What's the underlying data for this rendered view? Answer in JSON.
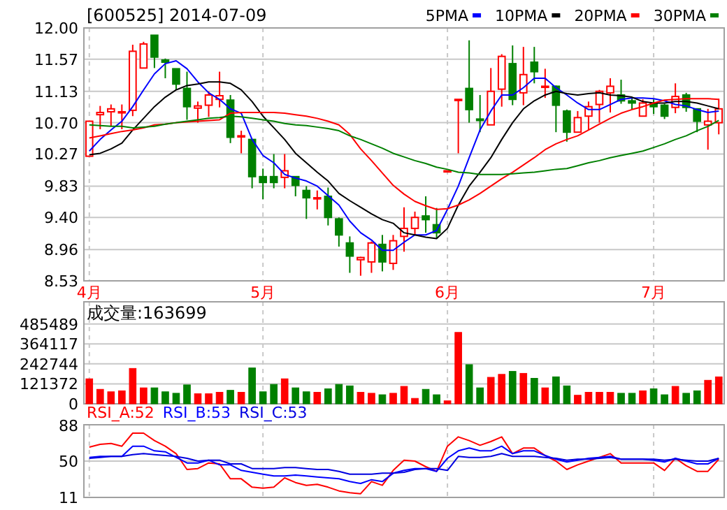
{
  "chart_data": [
    {
      "type": "candlestick",
      "title": "[600525] 2014-07-09",
      "categories": [
        "4月",
        null,
        null,
        null,
        null,
        null,
        null,
        null,
        null,
        null,
        null,
        null,
        null,
        null,
        null,
        null,
        "5月",
        null,
        null,
        null,
        null,
        null,
        null,
        null,
        null,
        null,
        null,
        null,
        null,
        null,
        null,
        null,
        null,
        "6月",
        null,
        null,
        null,
        null,
        null,
        null,
        null,
        null,
        null,
        null,
        null,
        null,
        null,
        null,
        null,
        null,
        null,
        null,
        "7月",
        null,
        null,
        null,
        null,
        null,
        null
      ],
      "ohlc": [
        [
          10.24,
          10.72,
          10.24,
          10.72
        ],
        [
          10.81,
          10.93,
          10.61,
          10.84
        ],
        [
          10.85,
          10.95,
          10.65,
          10.89
        ],
        [
          10.85,
          10.95,
          10.61,
          10.85
        ],
        [
          10.87,
          11.77,
          10.79,
          11.68
        ],
        [
          11.45,
          11.81,
          11.45,
          11.78
        ],
        [
          11.9,
          11.9,
          11.45,
          11.6
        ],
        [
          11.56,
          11.58,
          11.31,
          11.53
        ],
        [
          11.44,
          11.44,
          11.15,
          11.23
        ],
        [
          11.17,
          11.4,
          10.74,
          10.92
        ],
        [
          10.9,
          10.99,
          10.7,
          10.93
        ],
        [
          10.94,
          11.13,
          10.78,
          11.08
        ],
        [
          11.02,
          11.4,
          10.91,
          11.07
        ],
        [
          11.01,
          11.08,
          10.42,
          10.5
        ],
        [
          10.52,
          10.59,
          10.28,
          10.52
        ],
        [
          10.47,
          10.47,
          9.8,
          9.96
        ],
        [
          9.96,
          10.07,
          9.65,
          9.88
        ],
        [
          9.96,
          10.27,
          9.8,
          9.88
        ],
        [
          9.95,
          10.27,
          9.8,
          10.04
        ],
        [
          9.96,
          9.96,
          9.69,
          9.84
        ],
        [
          9.77,
          9.83,
          9.38,
          9.67
        ],
        [
          9.67,
          9.77,
          9.51,
          9.67
        ],
        [
          9.69,
          9.81,
          9.29,
          9.4
        ],
        [
          9.38,
          9.4,
          9.0,
          9.16
        ],
        [
          9.05,
          9.14,
          8.64,
          8.87
        ],
        [
          8.82,
          8.86,
          8.6,
          8.85
        ],
        [
          8.79,
          9.07,
          8.64,
          9.05
        ],
        [
          9.03,
          9.16,
          8.66,
          8.79
        ],
        [
          8.77,
          9.16,
          8.68,
          9.08
        ],
        [
          9.14,
          9.54,
          8.93,
          9.25
        ],
        [
          9.25,
          9.48,
          9.16,
          9.4
        ],
        [
          9.42,
          9.69,
          9.19,
          9.37
        ],
        [
          9.3,
          9.53,
          9.12,
          9.19
        ],
        [
          10.04,
          10.04,
          10.04,
          10.04
        ],
        [
          11.02,
          11.02,
          10.28,
          11.02
        ],
        [
          11.17,
          11.83,
          10.7,
          10.88
        ],
        [
          10.75,
          11.08,
          10.57,
          10.73
        ],
        [
          10.67,
          11.45,
          10.67,
          11.13
        ],
        [
          11.16,
          11.64,
          10.92,
          11.61
        ],
        [
          11.51,
          11.76,
          10.94,
          11.02
        ],
        [
          11.11,
          11.74,
          10.94,
          11.36
        ],
        [
          11.53,
          11.74,
          11.24,
          11.4
        ],
        [
          11.2,
          11.44,
          11.04,
          11.2
        ],
        [
          11.2,
          11.21,
          10.57,
          10.94
        ],
        [
          10.86,
          10.88,
          10.44,
          10.57
        ],
        [
          10.57,
          10.86,
          10.57,
          10.77
        ],
        [
          10.79,
          10.99,
          10.6,
          10.92
        ],
        [
          10.95,
          11.15,
          10.7,
          11.13
        ],
        [
          11.11,
          11.31,
          10.84,
          11.2
        ],
        [
          11.08,
          11.29,
          10.96,
          11.0
        ],
        [
          11.0,
          11.05,
          10.88,
          10.97
        ],
        [
          10.79,
          11.02,
          10.79,
          10.97
        ],
        [
          10.96,
          11.02,
          10.82,
          10.92
        ],
        [
          10.94,
          10.96,
          10.75,
          10.79
        ],
        [
          10.91,
          11.24,
          10.83,
          11.06
        ],
        [
          11.08,
          11.11,
          10.85,
          10.91
        ],
        [
          10.89,
          10.89,
          10.57,
          10.72
        ],
        [
          10.67,
          10.89,
          10.33,
          10.72
        ],
        [
          10.7,
          11.03,
          10.54,
          10.89
        ]
      ],
      "series": [
        {
          "name": "5PMA",
          "type": "line",
          "color": "#0000ff",
          "values": [
            10.31,
            10.47,
            10.6,
            10.72,
            10.92,
            11.15,
            11.37,
            11.51,
            11.55,
            11.44,
            11.26,
            11.11,
            11.02,
            10.89,
            10.83,
            10.47,
            10.25,
            10.15,
            9.99,
            9.94,
            9.9,
            9.83,
            9.7,
            9.57,
            9.35,
            9.19,
            9.09,
            8.95,
            8.95,
            9.06,
            9.16,
            9.16,
            9.22,
            9.51,
            9.83,
            10.22,
            10.6,
            10.86,
            11.08,
            11.08,
            11.18,
            11.31,
            11.31,
            11.18,
            11.08,
            10.97,
            10.88,
            10.88,
            10.95,
            11.02,
            11.04,
            11.04,
            11.03,
            11.0,
            10.95,
            10.93,
            10.88,
            10.84,
            10.86
          ]
        },
        {
          "name": "10PMA",
          "type": "line",
          "color": "#000000",
          "values": [
            10.26,
            10.28,
            10.34,
            10.42,
            10.6,
            10.76,
            10.92,
            11.05,
            11.15,
            11.21,
            11.23,
            11.26,
            11.26,
            11.24,
            11.15,
            10.99,
            10.79,
            10.63,
            10.47,
            10.28,
            10.15,
            10.02,
            9.9,
            9.73,
            9.63,
            9.54,
            9.45,
            9.37,
            9.32,
            9.19,
            9.16,
            9.13,
            9.11,
            9.25,
            9.57,
            9.83,
            10.02,
            10.22,
            10.47,
            10.7,
            10.89,
            11.0,
            11.08,
            11.13,
            11.1,
            11.08,
            11.1,
            11.11,
            11.08,
            11.07,
            11.05,
            10.99,
            10.97,
            10.97,
            10.99,
            10.99,
            10.97,
            10.93,
            10.89
          ]
        },
        {
          "name": "20PMA",
          "type": "line",
          "color": "#ff0000",
          "values": [
            10.49,
            10.52,
            10.55,
            10.58,
            10.6,
            10.63,
            10.67,
            10.68,
            10.7,
            10.71,
            10.72,
            10.73,
            10.74,
            10.83,
            10.84,
            10.84,
            10.84,
            10.84,
            10.83,
            10.81,
            10.79,
            10.76,
            10.72,
            10.67,
            10.54,
            10.34,
            10.18,
            10.01,
            9.84,
            9.72,
            9.62,
            9.56,
            9.51,
            9.52,
            9.57,
            9.64,
            9.73,
            9.83,
            9.93,
            10.02,
            10.12,
            10.22,
            10.33,
            10.41,
            10.47,
            10.52,
            10.6,
            10.68,
            10.76,
            10.83,
            10.88,
            10.92,
            10.97,
            11.01,
            11.02,
            11.03,
            11.03,
            11.03,
            11.02
          ]
        },
        {
          "name": "30PMA",
          "type": "line",
          "color": "#008000",
          "values": [
            10.67,
            10.66,
            10.65,
            10.65,
            10.63,
            10.64,
            10.65,
            10.68,
            10.7,
            10.72,
            10.74,
            10.76,
            10.77,
            10.79,
            10.78,
            10.76,
            10.74,
            10.72,
            10.69,
            10.67,
            10.66,
            10.64,
            10.62,
            10.59,
            10.52,
            10.47,
            10.41,
            10.35,
            10.28,
            10.23,
            10.18,
            10.14,
            10.09,
            10.06,
            10.02,
            10.01,
            9.99,
            9.99,
            9.99,
            10.0,
            10.01,
            10.02,
            10.04,
            10.06,
            10.07,
            10.11,
            10.15,
            10.18,
            10.22,
            10.25,
            10.28,
            10.31,
            10.36,
            10.41,
            10.47,
            10.52,
            10.59,
            10.65,
            10.73
          ]
        }
      ],
      "ylim": [
        8.53,
        12.0
      ],
      "yticks": [
        {
          "value": 12.0,
          "label": "12.00"
        },
        {
          "value": 11.57,
          "label": "11.57"
        },
        {
          "value": 11.13,
          "label": "11.13"
        },
        {
          "value": 10.7,
          "label": "10.70"
        },
        {
          "value": 10.27,
          "label": "10.27"
        },
        {
          "value": 9.83,
          "label": "9.83"
        },
        {
          "value": 9.4,
          "label": "9.40"
        },
        {
          "value": 8.96,
          "label": "8.96"
        },
        {
          "value": 8.53,
          "label": "8.53"
        }
      ],
      "grid": true,
      "legend": "top right"
    },
    {
      "type": "bar",
      "title": "成交量:163699",
      "categories": [
        null,
        null,
        null,
        null,
        null,
        null,
        null,
        null,
        null,
        null,
        null,
        null,
        null,
        null,
        null,
        null,
        null,
        null,
        null,
        null,
        null,
        null,
        null,
        null,
        null,
        null,
        null,
        null,
        null,
        null,
        null,
        null,
        null,
        null,
        null,
        null,
        null,
        null,
        null,
        null,
        null,
        null,
        null,
        null,
        null,
        null,
        null,
        null,
        null,
        null,
        null,
        null,
        null,
        null,
        null,
        null,
        null,
        null,
        null
      ],
      "values": [
        152000,
        88000,
        73000,
        79000,
        215000,
        97000,
        97000,
        73000,
        64000,
        115000,
        61000,
        61000,
        70000,
        82000,
        70000,
        218000,
        73000,
        118000,
        152000,
        97000,
        73000,
        70000,
        91000,
        118000,
        109000,
        70000,
        64000,
        55000,
        64000,
        106000,
        33000,
        88000,
        55000,
        18000,
        434000,
        238000,
        97000,
        161000,
        179000,
        197000,
        185000,
        155000,
        97000,
        164000,
        109000,
        52000,
        70000,
        70000,
        70000,
        64000,
        64000,
        79000,
        91000,
        55000,
        106000,
        64000,
        79000,
        143000,
        163699
      ],
      "colors": [
        "#ff0000",
        "#ff0000",
        "#ff0000",
        "#ff0000",
        "#ff0000",
        "#ff0000",
        "#008000",
        "#008000",
        "#008000",
        "#008000",
        "#ff0000",
        "#ff0000",
        "#ff0000",
        "#008000",
        "#ff0000",
        "#008000",
        "#008000",
        "#008000",
        "#ff0000",
        "#008000",
        "#008000",
        "#ff0000",
        "#008000",
        "#008000",
        "#008000",
        "#ff0000",
        "#ff0000",
        "#008000",
        "#ff0000",
        "#ff0000",
        "#ff0000",
        "#008000",
        "#008000",
        "#ff0000",
        "#ff0000",
        "#008000",
        "#008000",
        "#ff0000",
        "#ff0000",
        "#008000",
        "#ff0000",
        "#008000",
        "#ff0000",
        "#008000",
        "#008000",
        "#ff0000",
        "#ff0000",
        "#ff0000",
        "#ff0000",
        "#008000",
        "#008000",
        "#ff0000",
        "#008000",
        "#008000",
        "#ff0000",
        "#008000",
        "#008000",
        "#ff0000",
        "#ff0000"
      ],
      "ylim": [
        0,
        620000
      ],
      "yticks": [
        0,
        121372,
        242744,
        364117,
        485489
      ],
      "grid": true,
      "tick_labels": "y"
    },
    {
      "type": "line",
      "categories": [
        null,
        null,
        null,
        null,
        null,
        null,
        null,
        null,
        null,
        null,
        null,
        null,
        null,
        null,
        null,
        null,
        null,
        null,
        null,
        null,
        null,
        null,
        null,
        null,
        null,
        null,
        null,
        null,
        null,
        null,
        null,
        null,
        null,
        null,
        null,
        null,
        null,
        null,
        null,
        null,
        null,
        null,
        null,
        null,
        null,
        null,
        null,
        null,
        null,
        null,
        null,
        null,
        null,
        null,
        null,
        null,
        null,
        null,
        null
      ],
      "series": [
        {
          "name": "RSI_A:52",
          "color": "#ff0000",
          "values": [
            65,
            68,
            69,
            66,
            80,
            80,
            72,
            66,
            58,
            41,
            42,
            48,
            47,
            31,
            31,
            22,
            21,
            22,
            32,
            27,
            24,
            25,
            22,
            18,
            16,
            15,
            28,
            24,
            40,
            51,
            50,
            44,
            39,
            66,
            76,
            72,
            67,
            71,
            76,
            58,
            64,
            64,
            56,
            50,
            41,
            46,
            50,
            54,
            58,
            48,
            48,
            48,
            48,
            40,
            53,
            45,
            39,
            39,
            52
          ]
        },
        {
          "name": "RSI_B:53",
          "color": "#0000ff",
          "values": [
            54,
            55,
            55,
            55,
            66,
            66,
            61,
            60,
            54,
            48,
            48,
            51,
            46,
            46,
            40,
            38,
            36,
            34,
            34,
            35,
            34,
            33,
            32,
            31,
            28,
            26,
            30,
            28,
            37,
            40,
            42,
            42,
            39,
            53,
            61,
            64,
            61,
            61,
            66,
            58,
            61,
            61,
            56,
            52,
            49,
            51,
            53,
            54,
            55,
            52,
            52,
            52,
            51,
            49,
            53,
            50,
            47,
            47,
            53
          ]
        },
        {
          "name": "RSI_C:53",
          "color": "#0000e0",
          "values": [
            53,
            54,
            55,
            55,
            57,
            58,
            57,
            56,
            55,
            53,
            50,
            51,
            51,
            47,
            47,
            42,
            42,
            42,
            43,
            43,
            42,
            41,
            41,
            39,
            36,
            36,
            36,
            37,
            37,
            38,
            41,
            42,
            42,
            40,
            55,
            54,
            54,
            55,
            58,
            55,
            55,
            55,
            54,
            53,
            51,
            52,
            52,
            53,
            54,
            52,
            52,
            52,
            52,
            51,
            52,
            51,
            50,
            50,
            53
          ]
        }
      ],
      "ylim": [
        11,
        89
      ],
      "yticks": [
        11,
        50,
        88
      ],
      "ref_lines": [
        {
          "axis": "y",
          "value": 50
        }
      ],
      "grid": "x",
      "tick_labels": "y",
      "legend": "top left"
    }
  ]
}
